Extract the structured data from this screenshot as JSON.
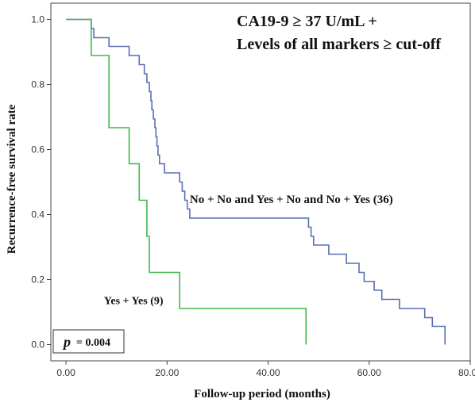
{
  "chart_data": {
    "type": "line",
    "title_lines": [
      "CA19-9 ≥ 37 U/mL +",
      "Levels of all markers ≥ cut-off"
    ],
    "xlabel": "Follow-up period (months)",
    "ylabel": "Recurrence-free survival rate",
    "xlim": [
      -3,
      80
    ],
    "ylim": [
      -0.05,
      1.05
    ],
    "x_ticks": [
      0,
      20,
      40,
      60,
      80
    ],
    "x_tick_labels": [
      "0.00",
      "20.00",
      "40.00",
      "60.00",
      "80.00"
    ],
    "y_ticks": [
      0,
      0.2,
      0.4,
      0.6,
      0.8,
      1.0
    ],
    "y_tick_labels": [
      "0.0",
      "0.2",
      "0.4",
      "0.6",
      "0.8",
      "1.0"
    ],
    "grid": false,
    "step": true,
    "series": [
      {
        "name": "No + No and Yes + No and No + Yes (36)",
        "color": "#5a6fb3",
        "points": [
          [
            0,
            1.0
          ],
          [
            5.0,
            0.972
          ],
          [
            5.5,
            0.944
          ],
          [
            8.5,
            0.917
          ],
          [
            12.5,
            0.889
          ],
          [
            14.5,
            0.861
          ],
          [
            15.5,
            0.833
          ],
          [
            16.0,
            0.806
          ],
          [
            16.5,
            0.778
          ],
          [
            16.8,
            0.75
          ],
          [
            17.0,
            0.722
          ],
          [
            17.3,
            0.694
          ],
          [
            17.6,
            0.667
          ],
          [
            17.8,
            0.639
          ],
          [
            18.0,
            0.611
          ],
          [
            18.2,
            0.583
          ],
          [
            18.5,
            0.556
          ],
          [
            19.5,
            0.528
          ],
          [
            22.5,
            0.5
          ],
          [
            23.0,
            0.472
          ],
          [
            23.5,
            0.444
          ],
          [
            24.0,
            0.417
          ],
          [
            24.5,
            0.389
          ],
          [
            48.0,
            0.361
          ],
          [
            48.5,
            0.333
          ],
          [
            49.0,
            0.306
          ],
          [
            52.0,
            0.278
          ],
          [
            55.5,
            0.25
          ],
          [
            58.0,
            0.222
          ],
          [
            59.0,
            0.194
          ],
          [
            61.0,
            0.167
          ],
          [
            62.5,
            0.139
          ],
          [
            66.0,
            0.111
          ],
          [
            71.0,
            0.083
          ],
          [
            72.5,
            0.056
          ],
          [
            75.0,
            0.028
          ],
          [
            75.0,
            0.0
          ]
        ]
      },
      {
        "name": "Yes + Yes (9)",
        "color": "#3fb84a",
        "points": [
          [
            0,
            1.0
          ],
          [
            5.0,
            0.889
          ],
          [
            8.5,
            0.667
          ],
          [
            12.5,
            0.556
          ],
          [
            14.5,
            0.444
          ],
          [
            16.0,
            0.333
          ],
          [
            16.5,
            0.222
          ],
          [
            22.5,
            0.111
          ],
          [
            47.5,
            0.0
          ]
        ]
      }
    ],
    "annotations": [
      {
        "text": "No + No and Yes + No and No + Yes (36)",
        "x": 24.5,
        "y": 0.435
      },
      {
        "text": "Yes + Yes (9)",
        "x": 7.5,
        "y": 0.125
      }
    ],
    "p_value": {
      "symbol": "p",
      "text": "= 0.004"
    }
  }
}
